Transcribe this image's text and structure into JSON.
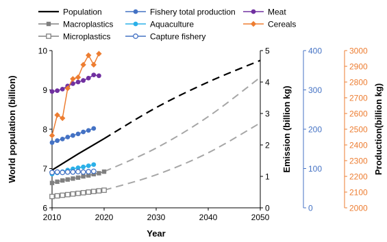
{
  "chart_data": {
    "type": "line",
    "title": "",
    "x": {
      "label": "Year",
      "lim": [
        2010,
        2050
      ],
      "ticks": [
        2010,
        2020,
        2030,
        2040,
        2050
      ]
    },
    "axes": {
      "population": {
        "label": "World population (billion)",
        "lim": [
          6,
          10
        ],
        "ticks": [
          6,
          7,
          8,
          9,
          10
        ],
        "color": "#000000"
      },
      "emission": {
        "label": "Emission (billion kg)",
        "lim": [
          0,
          5
        ],
        "ticks": [
          0,
          1,
          2,
          3,
          4,
          5
        ],
        "color": "#000000"
      },
      "fishery": {
        "label": "",
        "lim": [
          0,
          400
        ],
        "ticks": [
          0,
          100,
          200,
          300,
          400
        ],
        "color": "#4472c4"
      },
      "production": {
        "label": "Production(billion kg)",
        "lim": [
          2000,
          3000
        ],
        "ticks": [
          2000,
          2100,
          2200,
          2300,
          2400,
          2500,
          2600,
          2700,
          2800,
          2900,
          3000
        ],
        "color": "#ed7d31"
      }
    },
    "legend": {
      "placement": "top"
    },
    "series": [
      {
        "key": "population",
        "name": "Population",
        "axis": "population",
        "color": "#000000",
        "marker": "none",
        "line_width": 2.2,
        "x": [
          2010,
          2015,
          2020
        ],
        "y": [
          6.96,
          7.37,
          7.76
        ],
        "projection": {
          "x": [
            2020,
            2030,
            2040,
            2050
          ],
          "y": [
            7.76,
            8.55,
            9.2,
            9.75
          ],
          "color": "#000000",
          "dash": "11,7",
          "width": 2.2
        }
      },
      {
        "key": "macroplastics",
        "name": "Macroplastics",
        "axis": "emission",
        "color": "#808080",
        "marker": "square-filled",
        "line_width": 1.5,
        "x": [
          2010,
          2011,
          2012,
          2013,
          2014,
          2015,
          2016,
          2017,
          2018,
          2019,
          2020
        ],
        "y": [
          0.79,
          0.83,
          0.87,
          0.9,
          0.93,
          0.96,
          1.0,
          1.03,
          1.07,
          1.1,
          1.15
        ],
        "projection": {
          "x": [
            2020,
            2030,
            2040,
            2050
          ],
          "y": [
            1.15,
            1.9,
            2.9,
            4.15
          ],
          "color": "#a6a6a6",
          "dash": "11,7",
          "width": 2
        }
      },
      {
        "key": "microplastics",
        "name": "Microplastics",
        "axis": "emission",
        "color": "#808080",
        "marker": "square-open",
        "line_width": 1.5,
        "x": [
          2010,
          2011,
          2012,
          2013,
          2014,
          2015,
          2016,
          2017,
          2018,
          2019,
          2020
        ],
        "y": [
          0.36,
          0.38,
          0.4,
          0.42,
          0.44,
          0.46,
          0.48,
          0.5,
          0.52,
          0.54,
          0.56
        ],
        "projection": {
          "x": [
            2020,
            2030,
            2040,
            2050
          ],
          "y": [
            0.56,
            1.05,
            1.75,
            2.7
          ],
          "color": "#a6a6a6",
          "dash": "11,7",
          "width": 2
        }
      },
      {
        "key": "fishery_total",
        "name": "Fishery total production",
        "axis": "fishery",
        "color": "#4472c4",
        "marker": "circle-filled",
        "line_width": 1.5,
        "x": [
          2010,
          2011,
          2012,
          2013,
          2014,
          2015,
          2016,
          2017,
          2018
        ],
        "y": [
          166,
          171,
          175,
          180,
          184,
          188,
          193,
          197,
          202
        ]
      },
      {
        "key": "aquaculture",
        "name": "Aquaculture",
        "axis": "fishery",
        "color": "#2ab0e8",
        "marker": "circle-filled",
        "line_width": 1.5,
        "x": [
          2010,
          2011,
          2012,
          2013,
          2014,
          2015,
          2016,
          2017,
          2018
        ],
        "y": [
          86,
          89,
          92,
          96,
          99,
          102,
          104,
          107,
          110
        ]
      },
      {
        "key": "capture_fishery",
        "name": "Capture fishery",
        "axis": "fishery",
        "color": "#4472c4",
        "marker": "circle-open",
        "line_width": 1.5,
        "x": [
          2010,
          2011,
          2012,
          2013,
          2014,
          2015,
          2016,
          2017,
          2018
        ],
        "y": [
          90,
          91,
          90,
          91,
          91,
          92,
          91,
          92,
          93
        ]
      },
      {
        "key": "meat",
        "name": "Meat",
        "axis": "production",
        "color": "#7030a0",
        "marker": "circle-filled",
        "line_width": 1.5,
        "x": [
          2010,
          2011,
          2012,
          2013,
          2014,
          2015,
          2016,
          2017,
          2018,
          2019
        ],
        "y": [
          2740,
          2745,
          2755,
          2775,
          2790,
          2800,
          2810,
          2825,
          2845,
          2840
        ]
      },
      {
        "key": "cereals",
        "name": "Cereals",
        "axis": "production",
        "color": "#ed7d31",
        "marker": "diamond-filled",
        "line_width": 1.5,
        "x": [
          2010,
          2011,
          2012,
          2013,
          2014,
          2015,
          2016,
          2017,
          2018,
          2019
        ],
        "y": [
          2460,
          2590,
          2570,
          2760,
          2820,
          2830,
          2910,
          2970,
          2910,
          2980
        ]
      }
    ]
  }
}
